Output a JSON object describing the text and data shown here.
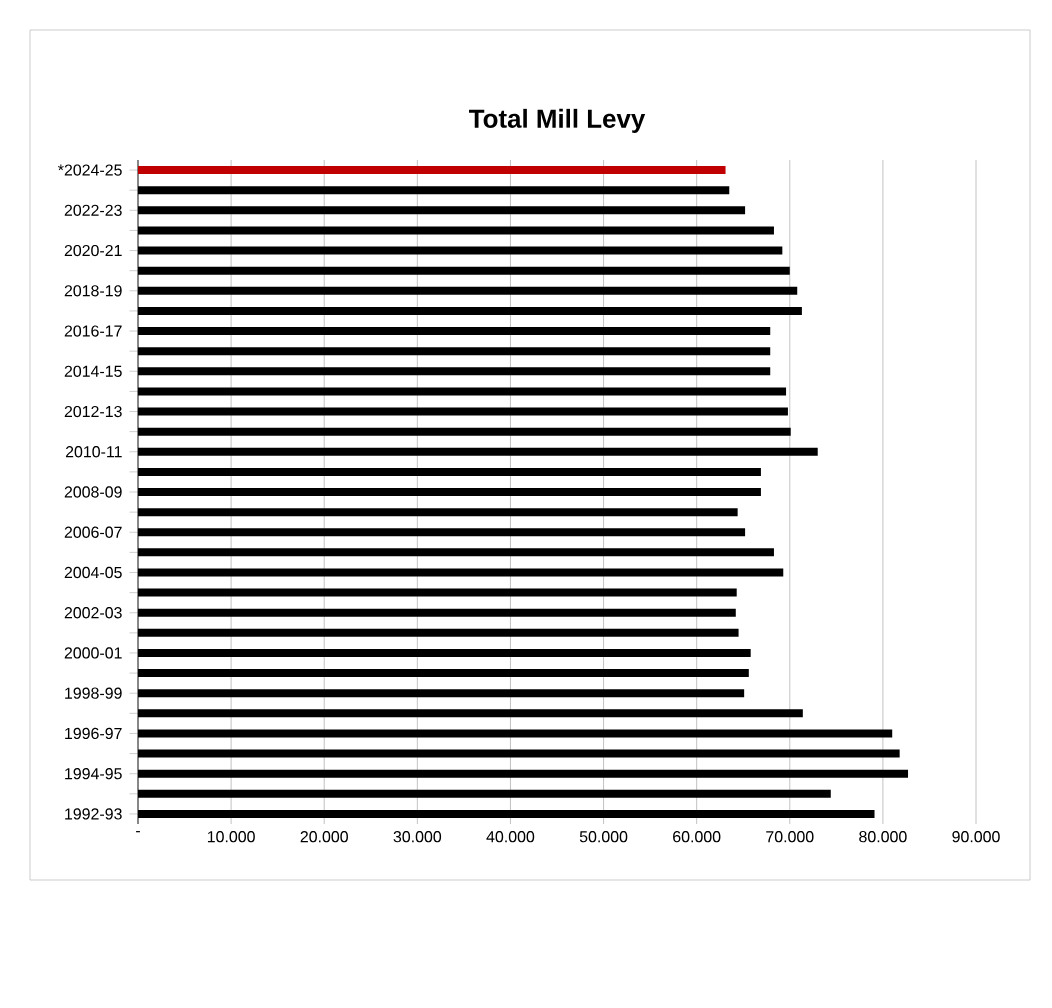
{
  "chart_data": {
    "type": "bar",
    "orientation": "horizontal",
    "title": "Total Mill Levy",
    "categories": [
      "*2024-25",
      null,
      "2022-23",
      null,
      "2020-21",
      null,
      "2018-19",
      null,
      "2016-17",
      null,
      "2014-15",
      null,
      "2012-13",
      null,
      "2010-11",
      null,
      "2008-09",
      null,
      "2006-07",
      null,
      "2004-05",
      null,
      "2002-03",
      null,
      "2000-01",
      null,
      "1998-99",
      null,
      "1996-97",
      null,
      "1994-95",
      null,
      "1992-93"
    ],
    "values": [
      63.1,
      63.5,
      65.2,
      68.3,
      69.2,
      70.0,
      70.8,
      71.3,
      67.9,
      67.9,
      67.9,
      69.6,
      69.8,
      70.1,
      73.0,
      66.9,
      66.9,
      64.4,
      65.2,
      68.3,
      69.3,
      64.3,
      64.2,
      64.5,
      65.8,
      65.6,
      65.1,
      71.4,
      81.0,
      81.8,
      82.7,
      74.4,
      79.1
    ],
    "colors": [
      "#c00000",
      "#000000",
      "#000000",
      "#000000",
      "#000000",
      "#000000",
      "#000000",
      "#000000",
      "#000000",
      "#000000",
      "#000000",
      "#000000",
      "#000000",
      "#000000",
      "#000000",
      "#000000",
      "#000000",
      "#000000",
      "#000000",
      "#000000",
      "#000000",
      "#000000",
      "#000000",
      "#000000",
      "#000000",
      "#000000",
      "#000000",
      "#000000",
      "#000000",
      "#000000",
      "#000000",
      "#000000",
      "#000000"
    ],
    "xlim": [
      0,
      90
    ],
    "xticks": [
      {
        "value": 0,
        "label": "-"
      },
      {
        "value": 10,
        "label": "10.000"
      },
      {
        "value": 20,
        "label": "20.000"
      },
      {
        "value": 30,
        "label": "30.000"
      },
      {
        "value": 40,
        "label": "40.000"
      },
      {
        "value": 50,
        "label": "50.000"
      },
      {
        "value": 60,
        "label": "60.000"
      },
      {
        "value": 70,
        "label": "70.000"
      },
      {
        "value": 80,
        "label": "80.000"
      },
      {
        "value": 90,
        "label": "90.000"
      }
    ],
    "grid": "x"
  }
}
